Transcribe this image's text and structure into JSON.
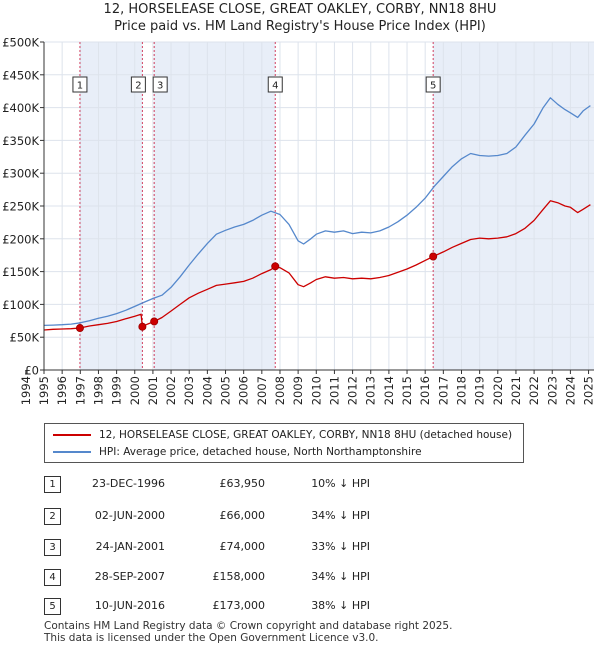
{
  "title_line1": "12, HORSELEASE CLOSE, GREAT OAKLEY, CORBY, NN18 8HU",
  "title_line2": "Price paid vs. HM Land Registry's House Price Index (HPI)",
  "colors": {
    "property": "#cc0000",
    "hpi": "#5588cc",
    "shade": "#e8eef8",
    "marker_line": "#d04060"
  },
  "chart_data": {
    "type": "line",
    "title": "Price paid vs. HM Land Registry's House Price Index (HPI)",
    "xlim": [
      1995.0,
      2025.3
    ],
    "ylim": [
      0,
      500000
    ],
    "x_ticks": [
      1994,
      1995,
      1996,
      1997,
      1998,
      1999,
      2000,
      2001,
      2002,
      2003,
      2004,
      2005,
      2006,
      2007,
      2008,
      2009,
      2010,
      2011,
      2012,
      2013,
      2014,
      2015,
      2016,
      2017,
      2018,
      2019,
      2020,
      2021,
      2022,
      2023,
      2024,
      2025
    ],
    "y_ticks": [
      {
        "value": 0,
        "label": "£0"
      },
      {
        "value": 50000,
        "label": "£50K"
      },
      {
        "value": 100000,
        "label": "£100K"
      },
      {
        "value": 150000,
        "label": "£150K"
      },
      {
        "value": 200000,
        "label": "£200K"
      },
      {
        "value": 250000,
        "label": "£250K"
      },
      {
        "value": 300000,
        "label": "£300K"
      },
      {
        "value": 350000,
        "label": "£350K"
      },
      {
        "value": 400000,
        "label": "£400K"
      },
      {
        "value": 450000,
        "label": "£450K"
      },
      {
        "value": 500000,
        "label": "£500K"
      }
    ],
    "series": [
      {
        "name": "12, HORSELEASE CLOSE, GREAT OAKLEY, CORBY, NN18 8HU (detached house)",
        "color": "#cc0000",
        "points": [
          [
            1995.0,
            61000
          ],
          [
            1995.5,
            62000
          ],
          [
            1996.0,
            62500
          ],
          [
            1996.5,
            63000
          ],
          [
            1996.98,
            63950
          ],
          [
            1997.5,
            67000
          ],
          [
            1998.0,
            69000
          ],
          [
            1998.5,
            71000
          ],
          [
            1999.0,
            74000
          ],
          [
            1999.5,
            78000
          ],
          [
            2000.0,
            82000
          ],
          [
            2000.35,
            85000
          ],
          [
            2000.42,
            66000
          ],
          [
            2000.7,
            70000
          ],
          [
            2001.07,
            74000
          ],
          [
            2001.5,
            80000
          ],
          [
            2002.0,
            90000
          ],
          [
            2002.5,
            100000
          ],
          [
            2003.0,
            110000
          ],
          [
            2003.5,
            117000
          ],
          [
            2004.0,
            123000
          ],
          [
            2004.5,
            129000
          ],
          [
            2005.0,
            131000
          ],
          [
            2005.5,
            133000
          ],
          [
            2006.0,
            135000
          ],
          [
            2006.5,
            140000
          ],
          [
            2007.0,
            147000
          ],
          [
            2007.5,
            153000
          ],
          [
            2007.74,
            158000
          ],
          [
            2008.0,
            156000
          ],
          [
            2008.5,
            148000
          ],
          [
            2009.0,
            130000
          ],
          [
            2009.3,
            127000
          ],
          [
            2009.7,
            133000
          ],
          [
            2010.0,
            138000
          ],
          [
            2010.5,
            142000
          ],
          [
            2011.0,
            140000
          ],
          [
            2011.5,
            141000
          ],
          [
            2012.0,
            139000
          ],
          [
            2012.5,
            140000
          ],
          [
            2013.0,
            139000
          ],
          [
            2013.5,
            141000
          ],
          [
            2014.0,
            144000
          ],
          [
            2014.5,
            149000
          ],
          [
            2015.0,
            154000
          ],
          [
            2015.5,
            160000
          ],
          [
            2016.0,
            167000
          ],
          [
            2016.44,
            173000
          ],
          [
            2017.0,
            180000
          ],
          [
            2017.5,
            187000
          ],
          [
            2018.0,
            193000
          ],
          [
            2018.5,
            199000
          ],
          [
            2019.0,
            201000
          ],
          [
            2019.5,
            200000
          ],
          [
            2020.0,
            201000
          ],
          [
            2020.5,
            203000
          ],
          [
            2021.0,
            208000
          ],
          [
            2021.5,
            216000
          ],
          [
            2022.0,
            228000
          ],
          [
            2022.5,
            245000
          ],
          [
            2022.9,
            258000
          ],
          [
            2023.3,
            255000
          ],
          [
            2023.7,
            250000
          ],
          [
            2024.0,
            248000
          ],
          [
            2024.4,
            240000
          ],
          [
            2024.7,
            245000
          ],
          [
            2025.1,
            252000
          ]
        ]
      },
      {
        "name": "HPI: Average price, detached house, North Northamptonshire",
        "color": "#5588cc",
        "points": [
          [
            1995.0,
            68000
          ],
          [
            1995.5,
            68500
          ],
          [
            1996.0,
            69000
          ],
          [
            1996.5,
            70000
          ],
          [
            1997.0,
            72000
          ],
          [
            1997.5,
            75000
          ],
          [
            1998.0,
            79000
          ],
          [
            1998.5,
            82000
          ],
          [
            1999.0,
            86000
          ],
          [
            1999.5,
            91000
          ],
          [
            2000.0,
            97000
          ],
          [
            2000.5,
            103000
          ],
          [
            2001.0,
            109000
          ],
          [
            2001.5,
            114000
          ],
          [
            2002.0,
            126000
          ],
          [
            2002.5,
            142000
          ],
          [
            2003.0,
            160000
          ],
          [
            2003.5,
            177000
          ],
          [
            2004.0,
            193000
          ],
          [
            2004.5,
            207000
          ],
          [
            2005.0,
            213000
          ],
          [
            2005.5,
            218000
          ],
          [
            2006.0,
            222000
          ],
          [
            2006.5,
            228000
          ],
          [
            2007.0,
            236000
          ],
          [
            2007.5,
            242000
          ],
          [
            2008.0,
            237000
          ],
          [
            2008.5,
            222000
          ],
          [
            2009.0,
            197000
          ],
          [
            2009.3,
            192000
          ],
          [
            2009.7,
            200000
          ],
          [
            2010.0,
            207000
          ],
          [
            2010.5,
            212000
          ],
          [
            2011.0,
            210000
          ],
          [
            2011.5,
            212000
          ],
          [
            2012.0,
            208000
          ],
          [
            2012.5,
            210000
          ],
          [
            2013.0,
            209000
          ],
          [
            2013.5,
            212000
          ],
          [
            2014.0,
            218000
          ],
          [
            2014.5,
            226000
          ],
          [
            2015.0,
            236000
          ],
          [
            2015.5,
            248000
          ],
          [
            2016.0,
            262000
          ],
          [
            2016.5,
            280000
          ],
          [
            2017.0,
            295000
          ],
          [
            2017.5,
            310000
          ],
          [
            2018.0,
            322000
          ],
          [
            2018.5,
            330000
          ],
          [
            2019.0,
            327000
          ],
          [
            2019.5,
            326000
          ],
          [
            2020.0,
            327000
          ],
          [
            2020.5,
            330000
          ],
          [
            2021.0,
            340000
          ],
          [
            2021.5,
            358000
          ],
          [
            2022.0,
            375000
          ],
          [
            2022.5,
            400000
          ],
          [
            2022.9,
            415000
          ],
          [
            2023.3,
            405000
          ],
          [
            2023.7,
            397000
          ],
          [
            2024.0,
            392000
          ],
          [
            2024.4,
            385000
          ],
          [
            2024.7,
            395000
          ],
          [
            2025.1,
            403000
          ]
        ]
      }
    ],
    "sales": [
      {
        "label": "1",
        "x": 1996.98,
        "y": 63950
      },
      {
        "label": "2",
        "x": 2000.42,
        "y": 66000
      },
      {
        "label": "3",
        "x": 2001.07,
        "y": 74000
      },
      {
        "label": "4",
        "x": 2007.74,
        "y": 158000
      },
      {
        "label": "5",
        "x": 2016.44,
        "y": 173000
      }
    ]
  },
  "legend": {
    "property_label": "12, HORSELEASE CLOSE, GREAT OAKLEY, CORBY, NN18 8HU (detached house)",
    "hpi_label": "HPI: Average price, detached house, North Northamptonshire"
  },
  "table": [
    {
      "num": "1",
      "date": "23-DEC-1996",
      "price": "£63,950",
      "pct": "10% ↓ HPI"
    },
    {
      "num": "2",
      "date": "02-JUN-2000",
      "price": "£66,000",
      "pct": "34% ↓ HPI"
    },
    {
      "num": "3",
      "date": "24-JAN-2001",
      "price": "£74,000",
      "pct": "33% ↓ HPI"
    },
    {
      "num": "4",
      "date": "28-SEP-2007",
      "price": "£158,000",
      "pct": "34% ↓ HPI"
    },
    {
      "num": "5",
      "date": "10-JUN-2016",
      "price": "£173,000",
      "pct": "38% ↓ HPI"
    }
  ],
  "footer_line1": "Contains HM Land Registry data © Crown copyright and database right 2025.",
  "footer_line2": "This data is licensed under the Open Government Licence v3.0."
}
